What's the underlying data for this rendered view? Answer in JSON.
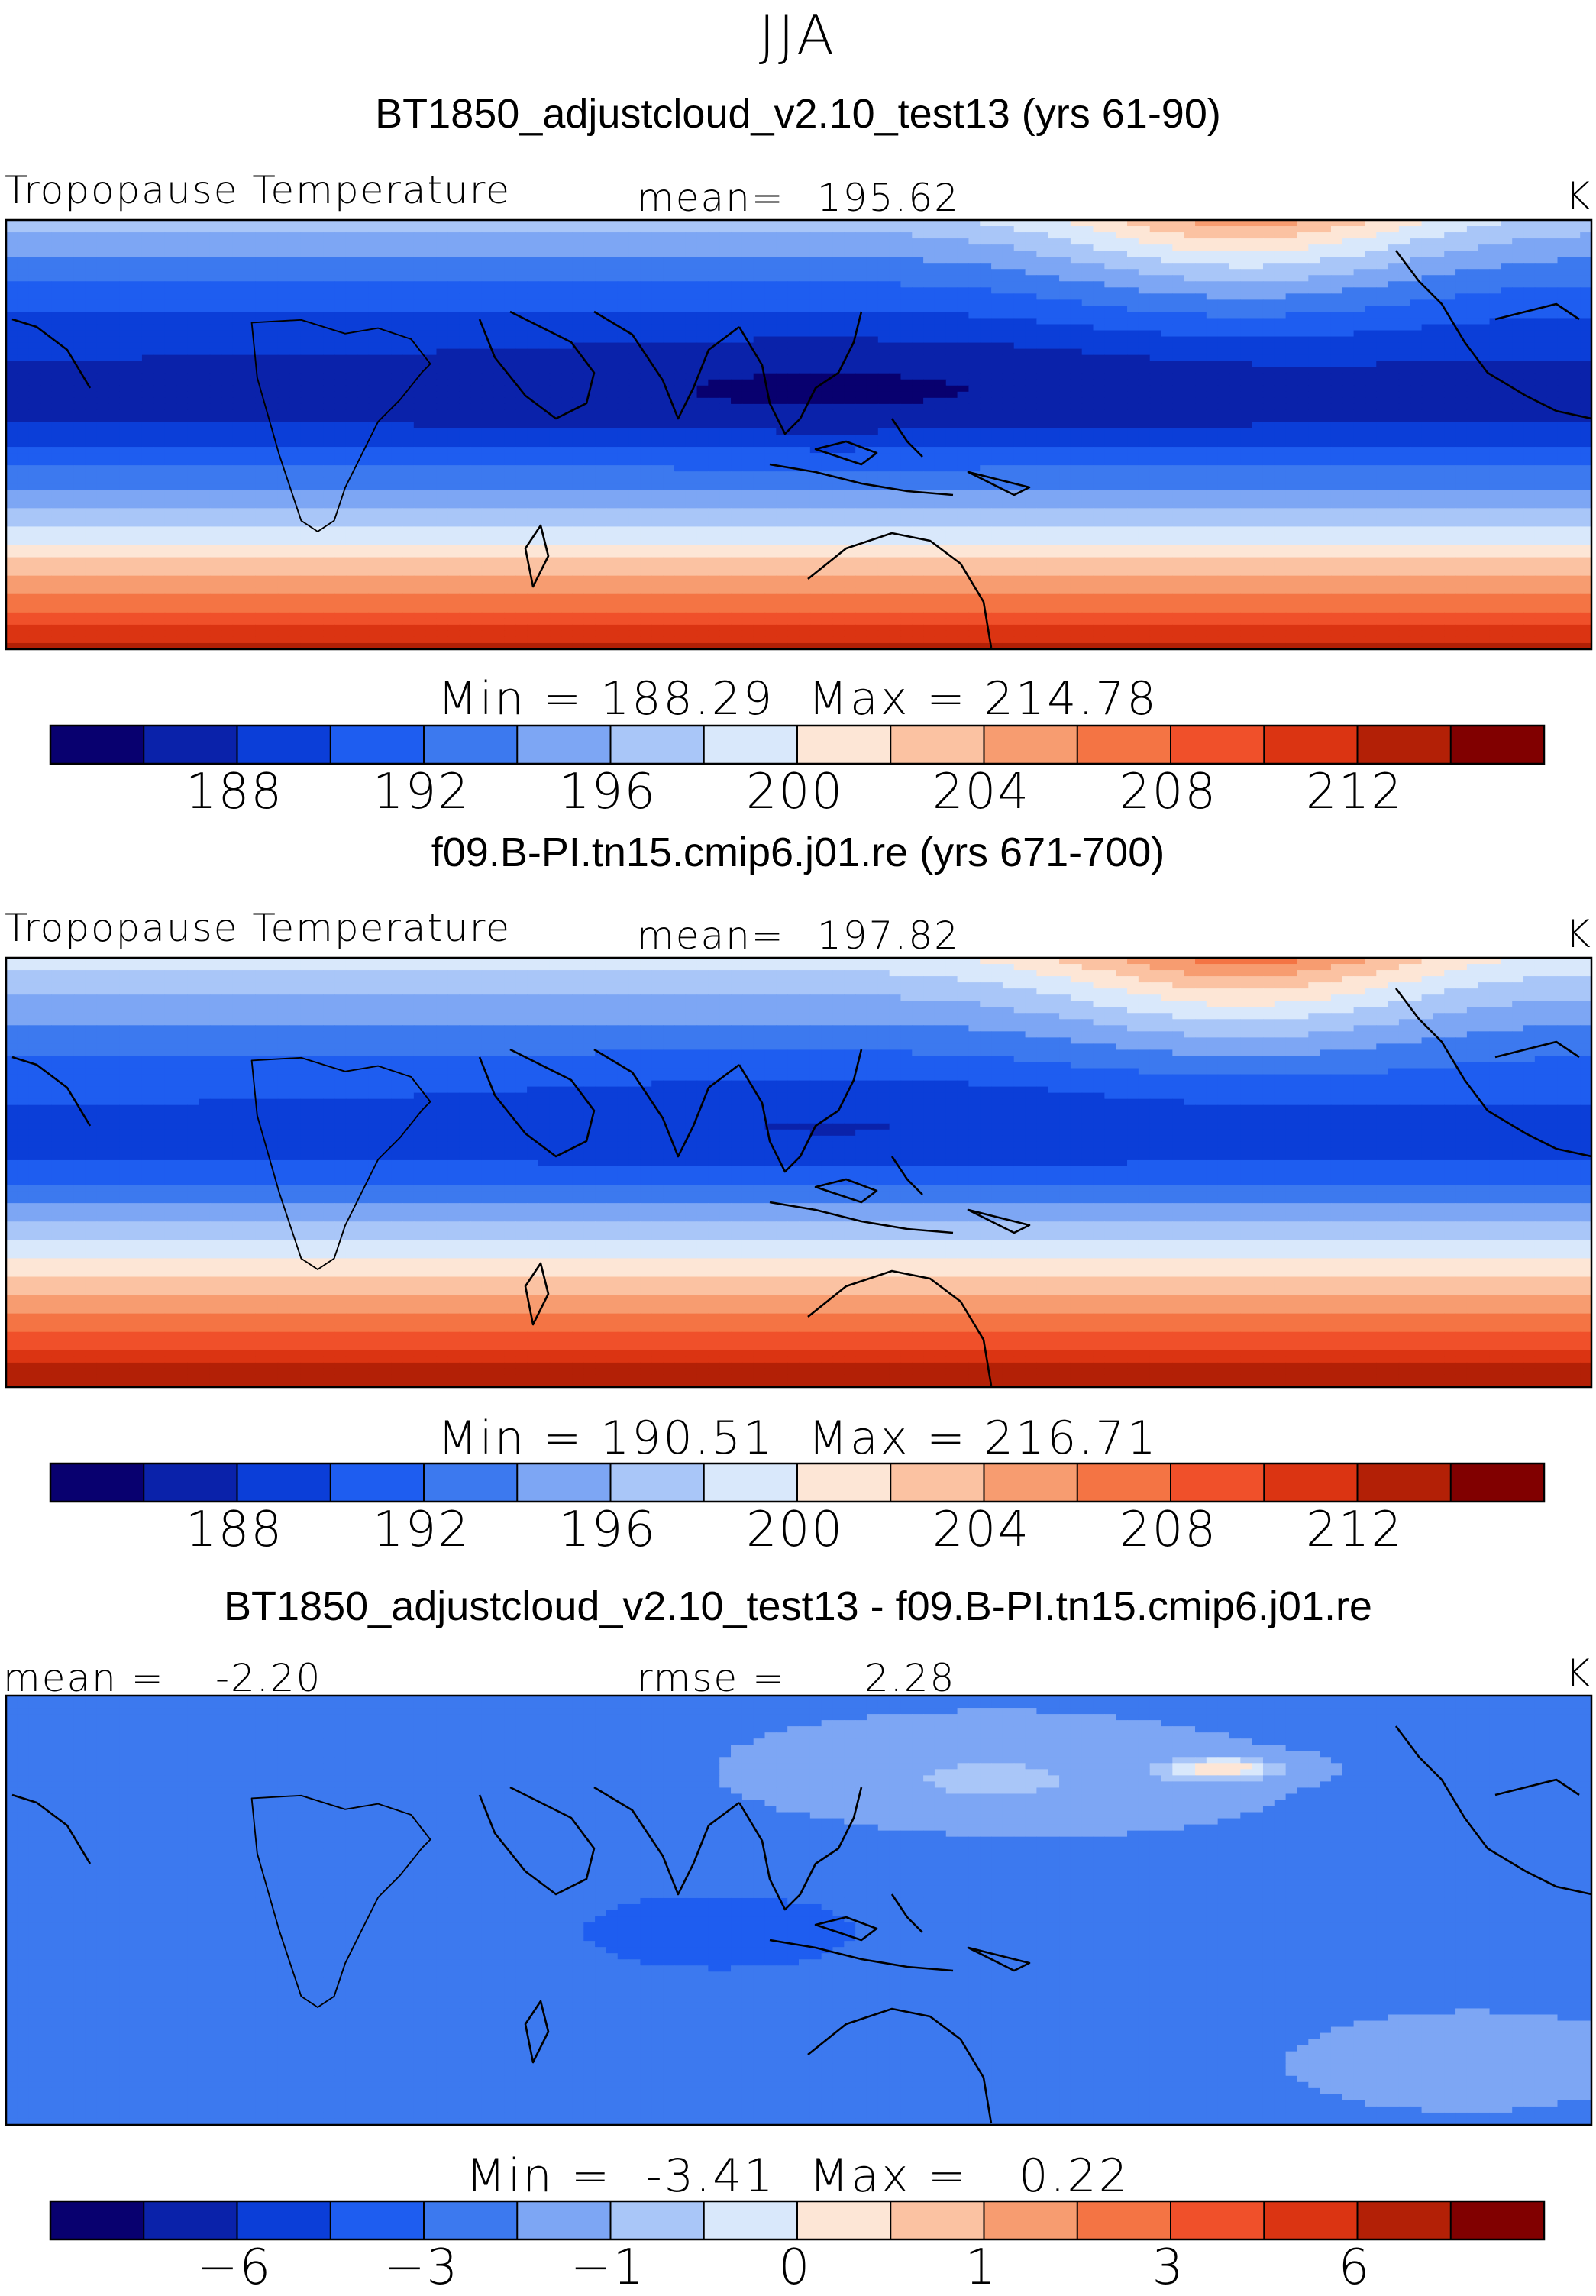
{
  "season": "JJA",
  "colors": [
    "#08006f",
    "#0a22aa",
    "#0b3ed8",
    "#1e5df0",
    "#3c79ef",
    "#7da6f4",
    "#a9c6f8",
    "#d9e8fb",
    "#fde6d6",
    "#fbc2a2",
    "#f79c70",
    "#f47444",
    "#f0502a",
    "#db3412",
    "#b32006",
    "#810000"
  ],
  "chart_data": [
    {
      "type": "heatmap",
      "title": "BT1850_adjustcloud_v2.10_test13 (yrs 61-90)",
      "variable": "Tropopause Temperature",
      "mean_label": "mean=",
      "mean_value": "195.62",
      "units": "K",
      "min_label": "Min",
      "min_value": "188.29",
      "max_label": "Max",
      "max_value": "214.78",
      "colorbar_ticks": [
        "188",
        "192",
        "196",
        "200",
        "204",
        "208",
        "212"
      ],
      "colorbar_levels": [
        188,
        190,
        192,
        194,
        196,
        198,
        200,
        202,
        204,
        206,
        208,
        210,
        212,
        214
      ],
      "field": {
        "tropical_min": 188.29,
        "south_max": 214.78,
        "north_max": 207
      }
    },
    {
      "type": "heatmap",
      "title": "f09.B-PI.tn15.cmip6.j01.re (yrs 671-700)",
      "variable": "Tropopause Temperature",
      "mean_label": "mean=",
      "mean_value": "197.82",
      "units": "K",
      "min_label": "Min",
      "min_value": "190.51",
      "max_label": "Max",
      "max_value": "216.71",
      "colorbar_ticks": [
        "188",
        "192",
        "196",
        "200",
        "204",
        "208",
        "212"
      ],
      "colorbar_levels": [
        188,
        190,
        192,
        194,
        196,
        198,
        200,
        202,
        204,
        206,
        208,
        210,
        212,
        214
      ],
      "field": {
        "tropical_min": 190.51,
        "south_max": 216.71,
        "north_max": 209
      }
    },
    {
      "type": "heatmap",
      "title": "BT1850_adjustcloud_v2.10_test13 - f09.B-PI.tn15.cmip6.j01.re",
      "mean_label": "mean =",
      "mean_value": "-2.20",
      "rmse_label": "rmse =",
      "rmse_value": "2.28",
      "units": "K",
      "min_label": "Min",
      "min_value": "-3.41",
      "max_label": "Max",
      "max_value": "0.22",
      "colorbar_ticks": [
        "−6",
        "−3",
        "−1",
        "0",
        "1",
        "3",
        "6"
      ],
      "colorbar_levels": [
        -8,
        -6,
        -4,
        -3,
        -2,
        -1,
        -0.5,
        0,
        0.5,
        1,
        2,
        3,
        4,
        6,
        8
      ],
      "field": {
        "background": -2.2,
        "low": -3.41,
        "high": 0.22
      }
    }
  ]
}
